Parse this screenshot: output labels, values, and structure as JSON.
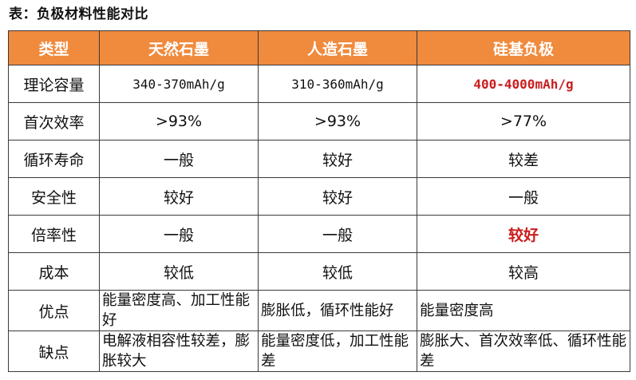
{
  "caption": "表：负极材料性能对比",
  "columns": [
    "类型",
    "天然石墨",
    "人造石墨",
    "硅基负极"
  ],
  "rows": [
    {
      "label": "理论容量",
      "cells": [
        "340-370mAh/g",
        "310-360mAh/g",
        "400-4000mAh/g"
      ]
    },
    {
      "label": "首次效率",
      "cells": [
        ">93%",
        ">93%",
        ">77%"
      ]
    },
    {
      "label": "循环寿命",
      "cells": [
        "一般",
        "较好",
        "较差"
      ]
    },
    {
      "label": "安全性",
      "cells": [
        "较好",
        "较好",
        "一般"
      ]
    },
    {
      "label": "倍率性",
      "cells": [
        "一般",
        "一般",
        "较好"
      ]
    },
    {
      "label": "成本",
      "cells": [
        "较低",
        "较低",
        "较高"
      ]
    },
    {
      "label": "优点",
      "cells": [
        "能量密度高、加工性能好",
        "膨胀低，循环性能好",
        "能量密度高"
      ]
    },
    {
      "label": "缺点",
      "cells": [
        "电解液相容性较差，膨胀较大",
        "能量密度低，加工性能差",
        "膨胀大、首次效率低、循环性能差"
      ]
    }
  ],
  "colors": {
    "header_bg": "#f08a3c",
    "header_text": "#ffffff",
    "highlight_text": "#c81e1e",
    "border": "#3a3a3a"
  }
}
